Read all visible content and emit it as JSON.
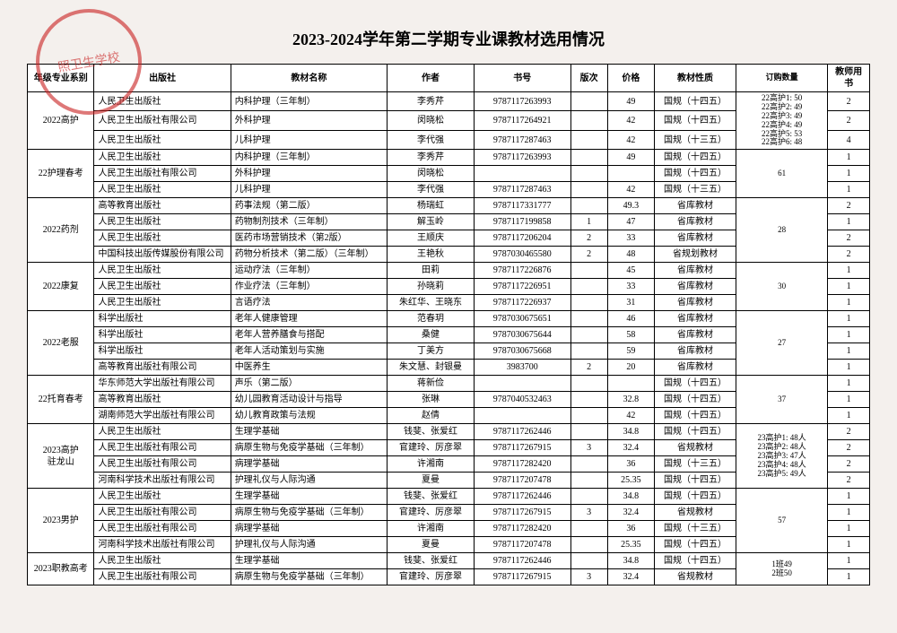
{
  "title": "2023-2024学年第二学期专业课教材选用情况",
  "stamp_text": "照卫生学校",
  "headers": {
    "grade": "年级专业系别",
    "publisher": "出版社",
    "name": "教材名称",
    "author": "作者",
    "isbn": "书号",
    "edition": "版次",
    "price": "价格",
    "nature": "教材性质",
    "qty": "订购数量",
    "tbook": "教师用书"
  },
  "groups": [
    {
      "grade": "2022高护",
      "qty": "22高护1: 50\n22高护2: 49\n22高护3: 49\n22高护4: 49\n22高护5: 53\n22高护6: 48",
      "rows": [
        {
          "pub": "人民卫生出版社",
          "name": "内科护理（三年制）",
          "author": "李秀芹",
          "isbn": "9787117263993",
          "ed": "",
          "price": "49",
          "nature": "国规（十四五）",
          "tb": "2"
        },
        {
          "pub": "人民卫生出版社有限公司",
          "name": "外科护理",
          "author": "闵晓松",
          "isbn": "9787117264921",
          "ed": "",
          "price": "42",
          "nature": "国规（十四五）",
          "tb": "2"
        },
        {
          "pub": "人民卫生出版社",
          "name": "儿科护理",
          "author": "李代强",
          "isbn": "9787117287463",
          "ed": "",
          "price": "42",
          "nature": "国规（十三五）",
          "tb": "4"
        }
      ]
    },
    {
      "grade": "22护理春考",
      "qty": "61",
      "rows": [
        {
          "pub": "人民卫生出版社",
          "name": "内科护理（三年制）",
          "author": "李秀芹",
          "isbn": "9787117263993",
          "ed": "",
          "price": "49",
          "nature": "国规（十四五）",
          "tb": "1"
        },
        {
          "pub": "人民卫生出版社有限公司",
          "name": "外科护理",
          "author": "闵晓松",
          "isbn": "",
          "ed": "",
          "price": "",
          "nature": "国规（十四五）",
          "tb": "1"
        },
        {
          "pub": "人民卫生出版社",
          "name": "儿科护理",
          "author": "李代强",
          "isbn": "9787117287463",
          "ed": "",
          "price": "42",
          "nature": "国规（十三五）",
          "tb": "1"
        }
      ]
    },
    {
      "grade": "2022药剂",
      "qty": "28",
      "rows": [
        {
          "pub": "高等教育出版社",
          "name": "药事法规（第二版）",
          "author": "杨瑞虹",
          "isbn": "9787117331777",
          "ed": "",
          "price": "49.3",
          "nature": "省库教材",
          "tb": "2"
        },
        {
          "pub": "人民卫生出版社",
          "name": "药物制剂技术（三年制）",
          "author": "解玉岭",
          "isbn": "9787117199858",
          "ed": "1",
          "price": "47",
          "nature": "省库教材",
          "tb": "1"
        },
        {
          "pub": "人民卫生出版社",
          "name": "医药市场营销技术（第2版）",
          "author": "王顺庆",
          "isbn": "9787117206204",
          "ed": "2",
          "price": "33",
          "nature": "省库教材",
          "tb": "2"
        },
        {
          "pub": "中国科技出版传媒股份有限公司",
          "name": "药物分析技术（第二版）（三年制）",
          "author": "王艳秋",
          "isbn": "9787030465580",
          "ed": "2",
          "price": "48",
          "nature": "省规划教材",
          "tb": "2"
        }
      ]
    },
    {
      "grade": "2022康复",
      "qty": "30",
      "rows": [
        {
          "pub": "人民卫生出版社",
          "name": "运动疗法（三年制）",
          "author": "田莉",
          "isbn": "9787117226876",
          "ed": "",
          "price": "45",
          "nature": "省库教材",
          "tb": "1"
        },
        {
          "pub": "人民卫生出版社",
          "name": "作业疗法（三年制）",
          "author": "孙晓莉",
          "isbn": "9787117226951",
          "ed": "",
          "price": "33",
          "nature": "省库教材",
          "tb": "1"
        },
        {
          "pub": "人民卫生出版社",
          "name": "言语疗法",
          "author": "朱红华、王晓东",
          "isbn": "9787117226937",
          "ed": "",
          "price": "31",
          "nature": "省库教材",
          "tb": "1"
        }
      ]
    },
    {
      "grade": "2022老服",
      "qty": "27",
      "rows": [
        {
          "pub": "科学出版社",
          "name": "老年人健康管理",
          "author": "范春玥",
          "isbn": "9787030675651",
          "ed": "",
          "price": "46",
          "nature": "省库教材",
          "tb": "1"
        },
        {
          "pub": "科学出版社",
          "name": "老年人营养膳食与搭配",
          "author": "桑健",
          "isbn": "9787030675644",
          "ed": "",
          "price": "58",
          "nature": "省库教材",
          "tb": "1"
        },
        {
          "pub": "科学出版社",
          "name": "老年人活动策划与实施",
          "author": "丁美方",
          "isbn": "9787030675668",
          "ed": "",
          "price": "59",
          "nature": "省库教材",
          "tb": "1"
        },
        {
          "pub": "高等教育出版社有限公司",
          "name": "中医养生",
          "author": "朱文慧、封银曼",
          "isbn": "3983700",
          "ed": "2",
          "price": "20",
          "nature": "省库教材",
          "tb": "1"
        }
      ]
    },
    {
      "grade": "22托育春考",
      "qty": "37",
      "rows": [
        {
          "pub": "华东师范大学出版社有限公司",
          "name": "声乐（第二版）",
          "author": "蒋新俭",
          "isbn": "",
          "ed": "",
          "price": "",
          "nature": "国规（十四五）",
          "tb": "1"
        },
        {
          "pub": "高等教育出版社",
          "name": "幼儿园教育活动设计与指导",
          "author": "张琳",
          "isbn": "9787040532463",
          "ed": "",
          "price": "32.8",
          "nature": "国规（十四五）",
          "tb": "1"
        },
        {
          "pub": "湖南师范大学出版社有限公司",
          "name": "幼儿教育政策与法规",
          "author": "赵倩",
          "isbn": "",
          "ed": "",
          "price": "42",
          "nature": "国规（十四五）",
          "tb": "1"
        }
      ]
    },
    {
      "grade": "2023高护\n驻龙山",
      "qty": "23高护1: 48人\n23高护2: 48人\n23高护3: 47人\n23高护4: 48人\n23高护5: 49人",
      "rows": [
        {
          "pub": "人民卫生出版社",
          "name": "生理学基础",
          "author": "钱斐、张爱红",
          "isbn": "9787117262446",
          "ed": "",
          "price": "34.8",
          "nature": "国规（十四五）",
          "tb": "2"
        },
        {
          "pub": "人民卫生出版社有限公司",
          "name": "病原生物与免疫学基础（三年制）",
          "author": "官建玲、厉彦翠",
          "isbn": "9787117267915",
          "ed": "3",
          "price": "32.4",
          "nature": "省规教材",
          "tb": "2"
        },
        {
          "pub": "人民卫生出版社有限公司",
          "name": "病理学基础",
          "author": "许湘南",
          "isbn": "9787117282420",
          "ed": "",
          "price": "36",
          "nature": "国规（十三五）",
          "tb": "2"
        },
        {
          "pub": "河南科学技术出版社有限公司",
          "name": "护理礼仪与人际沟通",
          "author": "夏曼",
          "isbn": "9787117207478",
          "ed": "",
          "price": "25.35",
          "nature": "国规（十四五）",
          "tb": "2"
        }
      ]
    },
    {
      "grade": "2023男护",
      "qty": "57",
      "rows": [
        {
          "pub": "人民卫生出版社",
          "name": "生理学基础",
          "author": "钱斐、张爱红",
          "isbn": "9787117262446",
          "ed": "",
          "price": "34.8",
          "nature": "国规（十四五）",
          "tb": "1"
        },
        {
          "pub": "人民卫生出版社有限公司",
          "name": "病原生物与免疫学基础（三年制）",
          "author": "官建玲、厉彦翠",
          "isbn": "9787117267915",
          "ed": "3",
          "price": "32.4",
          "nature": "省规教材",
          "tb": "1"
        },
        {
          "pub": "人民卫生出版社有限公司",
          "name": "病理学基础",
          "author": "许湘南",
          "isbn": "9787117282420",
          "ed": "",
          "price": "36",
          "nature": "国规（十三五）",
          "tb": "1"
        },
        {
          "pub": "河南科学技术出版社有限公司",
          "name": "护理礼仪与人际沟通",
          "author": "夏曼",
          "isbn": "9787117207478",
          "ed": "",
          "price": "25.35",
          "nature": "国规（十四五）",
          "tb": "1"
        }
      ]
    },
    {
      "grade": "2023职教高考",
      "qty": "1班49\n2班50",
      "rows": [
        {
          "pub": "人民卫生出版社",
          "name": "生理学基础",
          "author": "钱斐、张爱红",
          "isbn": "9787117262446",
          "ed": "",
          "price": "34.8",
          "nature": "国规（十四五）",
          "tb": "1"
        },
        {
          "pub": "人民卫生出版社有限公司",
          "name": "病原生物与免疫学基础（三年制）",
          "author": "官建玲、厉彦翠",
          "isbn": "9787117267915",
          "ed": "3",
          "price": "32.4",
          "nature": "省规教材",
          "tb": "1"
        }
      ]
    }
  ]
}
